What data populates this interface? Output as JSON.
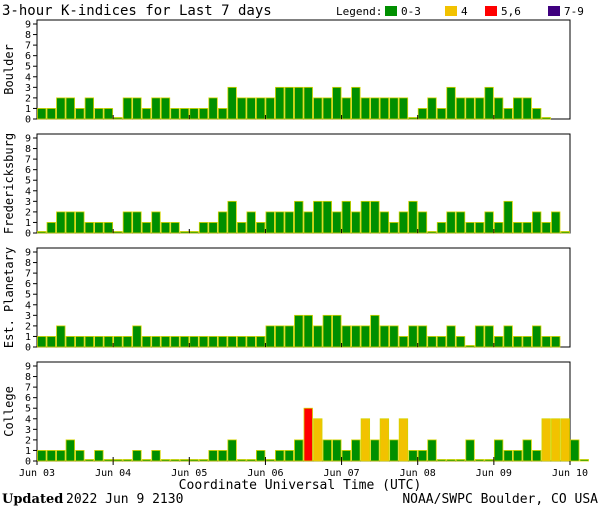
{
  "header": {
    "title": "3-hour K-indices for Last 7 days",
    "legend_title": "Legend:",
    "legend": [
      {
        "label": "0-3",
        "color": "#008f00"
      },
      {
        "label": "4",
        "color": "#f2c200"
      },
      {
        "label": "5,6",
        "color": "#ff0000"
      },
      {
        "label": "7-9",
        "color": "#3f007f"
      }
    ]
  },
  "footer": {
    "updated_label": "Updated",
    "updated_value": "2022 Jun  9 2130",
    "credit": "NOAA/SWPC Boulder, CO USA"
  },
  "chart_data": {
    "type": "bar",
    "xlabel": "Coordinate Universal Time (UTC)",
    "x_ticks": [
      "Jun 03",
      "Jun 04",
      "Jun 05",
      "Jun 06",
      "Jun 07",
      "Jun 08",
      "Jun 09",
      "Jun 10"
    ],
    "y_ticks": [
      "0",
      "1",
      "2",
      "3",
      "4",
      "5",
      "6",
      "7",
      "8",
      "9"
    ],
    "ylim": [
      0,
      9
    ],
    "bars_per_day": 8,
    "grid": false,
    "series": [
      {
        "name": "Boulder",
        "values": [
          1,
          1,
          2,
          2,
          1,
          2,
          1,
          1,
          0,
          2,
          2,
          1,
          2,
          2,
          1,
          1,
          1,
          1,
          2,
          1,
          3,
          2,
          2,
          2,
          2,
          3,
          3,
          3,
          3,
          2,
          2,
          3,
          2,
          3,
          2,
          2,
          2,
          2,
          2,
          0,
          1,
          2,
          1,
          3,
          2,
          2,
          2,
          3,
          2,
          1,
          2,
          2,
          1,
          0
        ]
      },
      {
        "name": "Fredericksburg",
        "values": [
          0,
          1,
          2,
          2,
          2,
          1,
          1,
          1,
          0,
          2,
          2,
          1,
          2,
          1,
          1,
          0,
          0,
          1,
          1,
          2,
          3,
          1,
          2,
          1,
          2,
          2,
          2,
          3,
          2,
          3,
          3,
          2,
          3,
          2,
          3,
          3,
          2,
          1,
          2,
          3,
          2,
          0,
          1,
          2,
          2,
          1,
          1,
          2,
          1,
          3,
          1,
          1,
          2,
          1,
          2,
          0
        ]
      },
      {
        "name": "Est. Planetary",
        "values": [
          1,
          1,
          2,
          1,
          1,
          1,
          1,
          1,
          1,
          1,
          2,
          1,
          1,
          1,
          1,
          1,
          1,
          1,
          1,
          1,
          1,
          1,
          1,
          1,
          2,
          2,
          2,
          3,
          3,
          2,
          3,
          3,
          2,
          2,
          2,
          3,
          2,
          2,
          1,
          2,
          2,
          1,
          1,
          2,
          1,
          0,
          2,
          2,
          1,
          2,
          1,
          1,
          2,
          1,
          1
        ]
      },
      {
        "name": "College",
        "values": [
          1,
          1,
          1,
          2,
          1,
          0,
          1,
          0,
          0,
          0,
          1,
          0,
          1,
          0,
          0,
          0,
          0,
          0,
          1,
          1,
          2,
          0,
          0,
          1,
          0,
          1,
          1,
          2,
          5,
          4,
          2,
          2,
          1,
          2,
          4,
          2,
          4,
          2,
          4,
          1,
          1,
          2,
          0,
          0,
          0,
          2,
          0,
          0,
          2,
          1,
          1,
          2,
          1,
          4,
          4,
          4,
          2,
          0
        ]
      }
    ]
  }
}
